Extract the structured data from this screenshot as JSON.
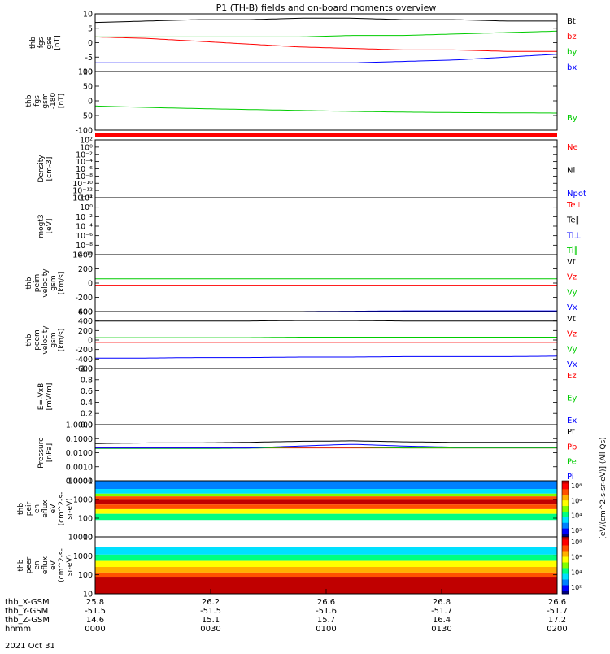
{
  "title": "P1 (TH-B) fields and on-board moments overview",
  "date_label": "2021 Oct 31",
  "colors": {
    "black": "#000000",
    "red": "#ff0000",
    "green": "#00cc00",
    "blue": "#0000ff"
  },
  "chart_data": [
    {
      "type": "line",
      "name": "fgs_gse",
      "ylabel_lines": [
        "thb",
        "fgs",
        "gse",
        "[nT]"
      ],
      "ylim": [
        -10,
        10
      ],
      "yticks": [
        "10",
        "5",
        "0",
        "-5",
        "-10"
      ],
      "series": [
        {
          "name": "Bt",
          "color": "black",
          "y": [
            7.0,
            7.5,
            8.0,
            8.0,
            8.5,
            8.5,
            8.0,
            8.0,
            7.5,
            7.5
          ]
        },
        {
          "name": "bz",
          "color": "red",
          "y": [
            2.0,
            1.5,
            0.5,
            -0.5,
            -1.5,
            -2.0,
            -2.5,
            -2.5,
            -3.0,
            -3.0
          ]
        },
        {
          "name": "by",
          "color": "green",
          "y": [
            2.0,
            2.0,
            2.0,
            2.0,
            2.0,
            2.5,
            2.5,
            3.0,
            3.5,
            4.0
          ]
        },
        {
          "name": "bx",
          "color": "blue",
          "y": [
            -7.0,
            -7.0,
            -7.0,
            -7.0,
            -7.0,
            -7.0,
            -6.5,
            -6.0,
            -5.0,
            -4.0
          ]
        }
      ]
    },
    {
      "type": "line",
      "name": "fgs_gsm",
      "ylabel_lines": [
        "thb",
        "fgs",
        "gsm",
        "-180",
        "[nT]"
      ],
      "ylim": [
        -150,
        100
      ],
      "yticks": [
        "100",
        "50",
        "0",
        "-50",
        "-100"
      ],
      "series": [
        {
          "name": "By",
          "color": "green",
          "y": [
            -47,
            -53,
            -58,
            -62,
            -66,
            -70,
            -73,
            -75,
            -76,
            -77
          ]
        }
      ]
    },
    {
      "type": "line",
      "name": "density",
      "ylabel_lines": [
        "Density",
        "[cm-3]"
      ],
      "yscale": "log",
      "ylim": [
        1e-14,
        100
      ],
      "yticks": [
        "10²",
        "10⁰",
        "10⁻²",
        "10⁻⁴",
        "10⁻⁶",
        "10⁻⁸",
        "10⁻¹⁰",
        "10⁻¹²",
        "10⁻¹⁴"
      ],
      "series": [
        {
          "name": "Ne",
          "color": "red",
          "y": []
        },
        {
          "name": "Ni",
          "color": "black",
          "y": []
        },
        {
          "name": "Npot",
          "color": "blue",
          "y": []
        }
      ]
    },
    {
      "type": "line",
      "name": "temperature",
      "ylabel_lines": [
        "mogt3",
        "[eV]"
      ],
      "yscale": "log",
      "ylim": [
        1e-10,
        100
      ],
      "yticks": [
        "10²",
        "10⁰",
        "10⁻²",
        "10⁻⁴",
        "10⁻⁶",
        "10⁻⁸",
        "10⁻¹⁰"
      ],
      "series": [
        {
          "name": "Te⊥",
          "color": "red",
          "y": []
        },
        {
          "name": "Te∥",
          "color": "black",
          "y": []
        },
        {
          "name": "Ti⊥",
          "color": "blue",
          "y": []
        },
        {
          "name": "Ti∥",
          "color": "green",
          "y": []
        }
      ]
    },
    {
      "type": "line",
      "name": "peim_velocity",
      "ylabel_lines": [
        "thb",
        "peim",
        "velocity",
        "gsm",
        "[km/s]"
      ],
      "ylim": [
        -400,
        400
      ],
      "yticks": [
        "400",
        "200",
        "0",
        "-200",
        "-400"
      ],
      "series": [
        {
          "name": "Vt",
          "color": "black",
          "y": [
            400,
            400,
            400,
            400,
            400,
            400,
            400,
            400,
            400,
            400
          ]
        },
        {
          "name": "Vz",
          "color": "red",
          "y": [
            -30,
            -30,
            -30,
            -30,
            -30,
            -30,
            -30,
            -30,
            -30,
            -30
          ]
        },
        {
          "name": "Vy",
          "color": "green",
          "y": [
            60,
            60,
            60,
            60,
            60,
            60,
            60,
            60,
            60,
            60
          ]
        },
        {
          "name": "Vx",
          "color": "blue",
          "y": [
            -400,
            -400,
            -400,
            -400,
            -400,
            -395,
            -390,
            -390,
            -390,
            -390
          ]
        }
      ]
    },
    {
      "type": "line",
      "name": "peem_velocity",
      "ylabel_lines": [
        "thb",
        "peem",
        "velocity",
        "gsm",
        "[km/s]"
      ],
      "ylim": [
        -600,
        600
      ],
      "yticks": [
        "600",
        "400",
        "200",
        "0",
        "-200",
        "-400",
        "-600"
      ],
      "series": [
        {
          "name": "Vt",
          "color": "black",
          "y": [
            400,
            400,
            400,
            400,
            410,
            410,
            400,
            400,
            400,
            400
          ]
        },
        {
          "name": "Vz",
          "color": "red",
          "y": [
            -50,
            -50,
            -50,
            -50,
            -50,
            -50,
            -50,
            -50,
            -50,
            -50
          ]
        },
        {
          "name": "Vy",
          "color": "green",
          "y": [
            50,
            50,
            50,
            50,
            60,
            60,
            60,
            60,
            60,
            60
          ]
        },
        {
          "name": "Vx",
          "color": "blue",
          "y": [
            -380,
            -380,
            -370,
            -370,
            -360,
            -360,
            -350,
            -350,
            -350,
            -340
          ]
        }
      ]
    },
    {
      "type": "line",
      "name": "efield",
      "ylabel_lines": [
        "E=-VxB",
        "[mV/m]"
      ],
      "ylim": [
        0,
        1
      ],
      "yticks": [
        "1.0",
        "0.8",
        "0.6",
        "0.4",
        "0.2",
        "0.0"
      ],
      "series": [
        {
          "name": "Ez",
          "color": "red",
          "y": []
        },
        {
          "name": "Ey",
          "color": "green",
          "y": []
        },
        {
          "name": "Ex",
          "color": "blue",
          "y": []
        }
      ]
    },
    {
      "type": "line",
      "name": "pressure",
      "ylabel_lines": [
        "Pressure",
        "[nPa]"
      ],
      "yscale": "log",
      "ylim": [
        0.0001,
        1
      ],
      "yticks": [
        "1.0000",
        "0.1000",
        "0.0100",
        "0.0010",
        "0.0001"
      ],
      "series": [
        {
          "name": "Pt",
          "color": "black",
          "y": [
            0.045,
            0.05,
            0.05,
            0.055,
            0.065,
            0.07,
            0.06,
            0.055,
            0.055,
            0.055
          ]
        },
        {
          "name": "Pb",
          "color": "red",
          "y": [
            0.022,
            0.022,
            0.022,
            0.022,
            0.022,
            0.022,
            0.022,
            0.022,
            0.022,
            0.022
          ]
        },
        {
          "name": "Pe",
          "color": "green",
          "y": [
            0.02,
            0.02,
            0.02,
            0.021,
            0.025,
            0.025,
            0.022,
            0.022,
            0.022,
            0.022
          ]
        },
        {
          "name": "Pi",
          "color": "blue",
          "y": [
            0.022,
            0.022,
            0.022,
            0.022,
            0.03,
            0.04,
            0.03,
            0.025,
            0.025,
            0.025
          ]
        }
      ]
    },
    {
      "type": "heatmap",
      "name": "peir_eflux",
      "ylabel_lines": [
        "thb",
        "peir",
        "en",
        "eflux",
        "eV",
        "(cm^2-s-",
        "sr-eV)"
      ],
      "yscale": "log",
      "ylim": [
        5,
        20000
      ],
      "yticks": [
        "10000",
        "1000",
        "100",
        "10"
      ],
      "bands": [
        {
          "from": 20000,
          "to": 6000,
          "level": 0.15
        },
        {
          "from": 6000,
          "to": 3000,
          "level": 0.3
        },
        {
          "from": 3000,
          "to": 2000,
          "level": 0.5
        },
        {
          "from": 2000,
          "to": 1200,
          "level": 0.8
        },
        {
          "from": 1200,
          "to": 600,
          "level": 0.97
        },
        {
          "from": 600,
          "to": 300,
          "level": 0.8
        },
        {
          "from": 300,
          "to": 150,
          "level": 0.55
        },
        {
          "from": 150,
          "to": 60,
          "level": 0.35
        },
        {
          "from": 60,
          "to": 5,
          "level": 0.0
        }
      ],
      "colorbar_ticks": [
        "10⁸",
        "10⁶",
        "10⁴",
        "10²"
      ]
    },
    {
      "type": "heatmap",
      "name": "peer_eflux",
      "ylabel_lines": [
        "thb",
        "peer",
        "en",
        "eflux",
        "eV",
        "(cm^2-s-",
        "sr-eV)"
      ],
      "yscale": "log",
      "ylim": [
        5,
        20000
      ],
      "yticks": [
        "10000",
        "1000",
        "100",
        "10"
      ],
      "bands": [
        {
          "from": 20000,
          "to": 4500,
          "level": 0.0
        },
        {
          "from": 4500,
          "to": 1500,
          "level": 0.3
        },
        {
          "from": 1500,
          "to": 600,
          "level": 0.42
        },
        {
          "from": 600,
          "to": 250,
          "level": 0.55
        },
        {
          "from": 250,
          "to": 110,
          "level": 0.7
        },
        {
          "from": 110,
          "to": 60,
          "level": 0.82
        },
        {
          "from": 60,
          "to": 5,
          "level": 0.97
        }
      ],
      "colorbar_ticks": [
        "10⁸",
        "10⁶",
        "10⁴",
        "10²"
      ]
    }
  ],
  "colorbar_label": "[eV/(cm^2-s-sr-eV)] (All Qs)",
  "colorbar_overlay_label": "thb_peer_en_eflux [eV/(cm^2-s-sr-eV)]",
  "xaxis": {
    "rows": [
      {
        "label": "thb_X-GSM",
        "values": [
          "25.8",
          "26.2",
          "26.6",
          "26.8",
          "26.6"
        ]
      },
      {
        "label": "thb_Y-GSM",
        "values": [
          "-51.5",
          "-51.5",
          "-51.6",
          "-51.7",
          "-51.7"
        ]
      },
      {
        "label": "thb_Z-GSM",
        "values": [
          "14.6",
          "15.1",
          "15.7",
          "16.4",
          "17.2"
        ]
      },
      {
        "label": "hhmm",
        "values": [
          "0000",
          "0030",
          "0100",
          "0130",
          "0200"
        ]
      }
    ]
  }
}
